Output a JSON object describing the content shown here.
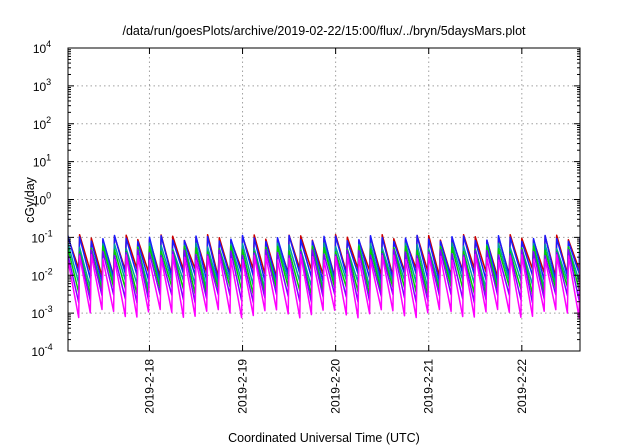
{
  "chart_data": {
    "type": "line",
    "title": "/data/run/goesPlots/archive/2019-02-22/15:00/flux/../bryn/5daysMars.plot",
    "xlabel": "Coordinated Universal Time (UTC)",
    "ylabel": "cGy/day",
    "yscale": "log",
    "ylim": [
      0.0001,
      10000
    ],
    "xlim": [
      "2019-02-17 03:00",
      "2019-02-22 15:00"
    ],
    "grid": true,
    "ytick_labels": [
      {
        "base": "10",
        "exp": "4"
      },
      {
        "base": "10",
        "exp": "3"
      },
      {
        "base": "10",
        "exp": "2"
      },
      {
        "base": "10",
        "exp": "1"
      },
      {
        "base": "10",
        "exp": "0"
      },
      {
        "base": "10",
        "exp": "-1"
      },
      {
        "base": "10",
        "exp": "-2"
      },
      {
        "base": "10",
        "exp": "-3"
      },
      {
        "base": "10",
        "exp": "-4"
      }
    ],
    "xtick_labels": [
      "2019-2-18",
      "2019-2-19",
      "2019-2-20",
      "2019-2-21",
      "2019-2-22"
    ],
    "x_peak_times": [
      "02-17 03:00",
      "02-17 06:00",
      "02-17 09:00",
      "02-17 12:00",
      "02-17 15:00",
      "02-17 18:00",
      "02-17 21:00",
      "02-18 00:00",
      "02-18 03:00",
      "02-18 06:00",
      "02-18 09:00",
      "02-18 12:00",
      "02-18 15:00",
      "02-18 18:00",
      "02-18 21:00",
      "02-19 00:00",
      "02-19 03:00",
      "02-19 06:00",
      "02-19 09:00",
      "02-19 12:00",
      "02-19 15:00",
      "02-19 18:00",
      "02-19 21:00",
      "02-20 00:00",
      "02-20 03:00",
      "02-20 06:00",
      "02-20 09:00",
      "02-20 12:00",
      "02-20 15:00",
      "02-20 18:00",
      "02-20 21:00",
      "02-21 00:00",
      "02-21 03:00",
      "02-21 06:00",
      "02-21 09:00",
      "02-21 12:00",
      "02-21 15:00",
      "02-21 18:00",
      "02-21 21:00",
      "02-22 00:00",
      "02-22 03:00",
      "02-22 06:00",
      "02-22 09:00",
      "02-22 12:00",
      "02-22 15:00"
    ],
    "series": [
      {
        "color": "#cc0000",
        "peak": 0.1,
        "trough": 0.012
      },
      {
        "color": "#1a1aff",
        "peak": 0.095,
        "trough": 0.009
      },
      {
        "color": "#00a0a0",
        "peak": 0.06,
        "trough": 0.006
      },
      {
        "color": "#00d000",
        "peak": 0.05,
        "trough": 0.004
      },
      {
        "color": "#8000ff",
        "peak": 0.04,
        "trough": 0.0025
      },
      {
        "color": "#ff00ff",
        "peak": 0.03,
        "trough": 0.001
      }
    ]
  }
}
